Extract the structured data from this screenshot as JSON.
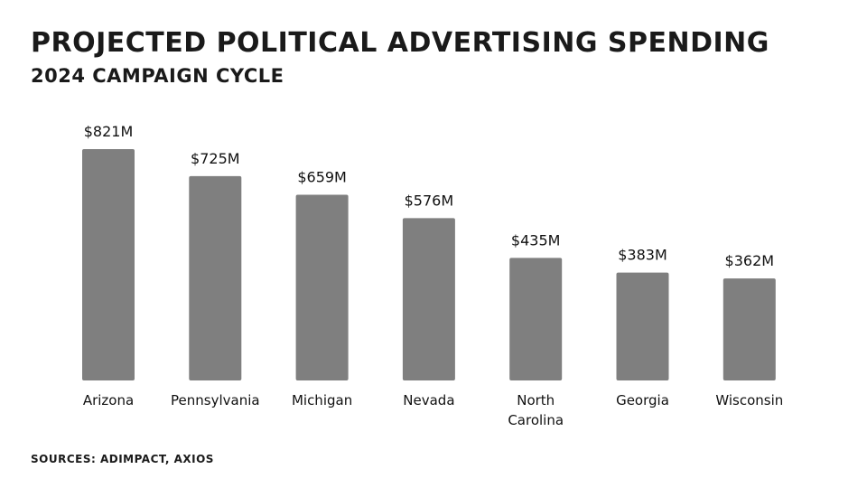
{
  "chart_data": {
    "type": "bar",
    "title": "PROJECTED POLITICAL ADVERTISING SPENDING",
    "subtitle": "2024 CAMPAIGN CYCLE",
    "categories": [
      "Arizona",
      "Pennsylvania",
      "Michigan",
      "Nevada",
      "North Carolina",
      "Georgia",
      "Wisconsin"
    ],
    "category_lines": [
      [
        "Arizona"
      ],
      [
        "Pennsylvania"
      ],
      [
        "Michigan"
      ],
      [
        "Nevada"
      ],
      [
        "North",
        "Carolina"
      ],
      [
        "Georgia"
      ],
      [
        "Wisconsin"
      ]
    ],
    "values": [
      821,
      725,
      659,
      576,
      435,
      383,
      362
    ],
    "value_labels": [
      "$821M",
      "$725M",
      "$659M",
      "$576M",
      "$435M",
      "$383M",
      "$362M"
    ],
    "xlabel": "",
    "ylabel": "",
    "ylim": [
      0,
      821
    ],
    "grid": false,
    "bar_color": "#7f7f7f"
  },
  "footer": {
    "source": "SOURCES: ADIMPACT, AXIOS"
  }
}
